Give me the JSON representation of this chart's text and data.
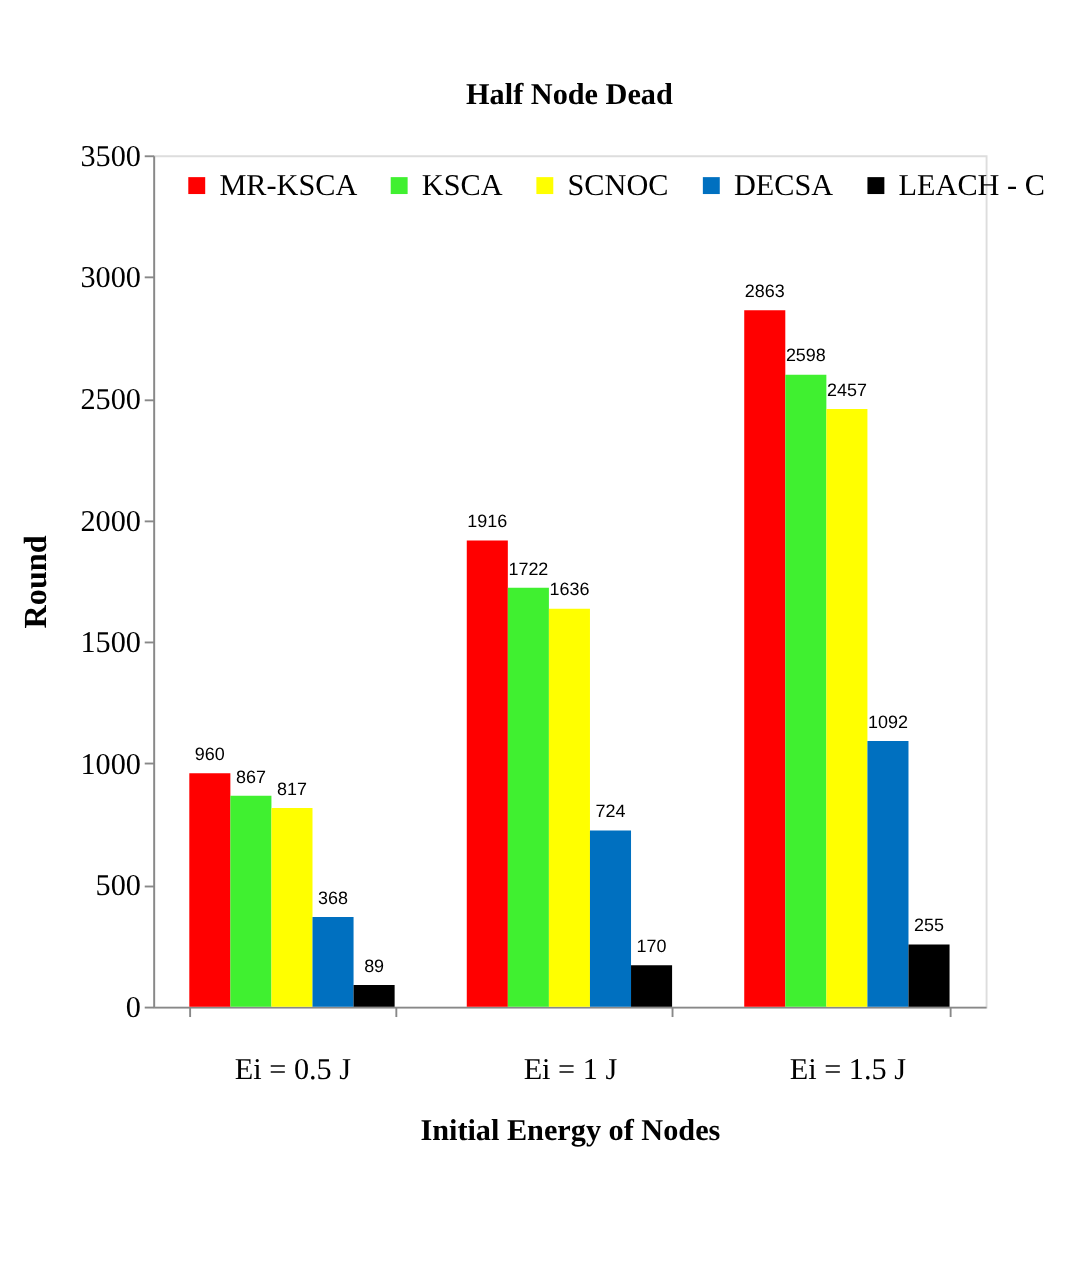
{
  "chart_data": {
    "type": "bar",
    "title": "Half  Node Dead",
    "xlabel": "Initial Energy of Nodes",
    "ylabel": "Round",
    "categories": [
      "Ei = 0.5 J",
      "Ei = 1 J",
      "Ei = 1.5 J"
    ],
    "series": [
      {
        "name": "MR-KSCA",
        "color": "#ff0000",
        "values": [
          960,
          1916,
          2863
        ]
      },
      {
        "name": "KSCA",
        "color": "#40f030",
        "values": [
          867,
          1722,
          2598
        ]
      },
      {
        "name": "SCNOC",
        "color": "#ffff00",
        "values": [
          817,
          1636,
          2457
        ]
      },
      {
        "name": "DECSA",
        "color": "#0070c0",
        "values": [
          368,
          724,
          1092
        ]
      },
      {
        "name": "LEACH - C",
        "color": "#000000",
        "values": [
          89,
          170,
          255
        ]
      }
    ],
    "ylim": [
      0,
      3500
    ],
    "yticks": [
      0,
      500,
      1000,
      1500,
      2000,
      2500,
      3000,
      3500
    ],
    "data_labels": true,
    "legend": "top",
    "grid": false
  }
}
